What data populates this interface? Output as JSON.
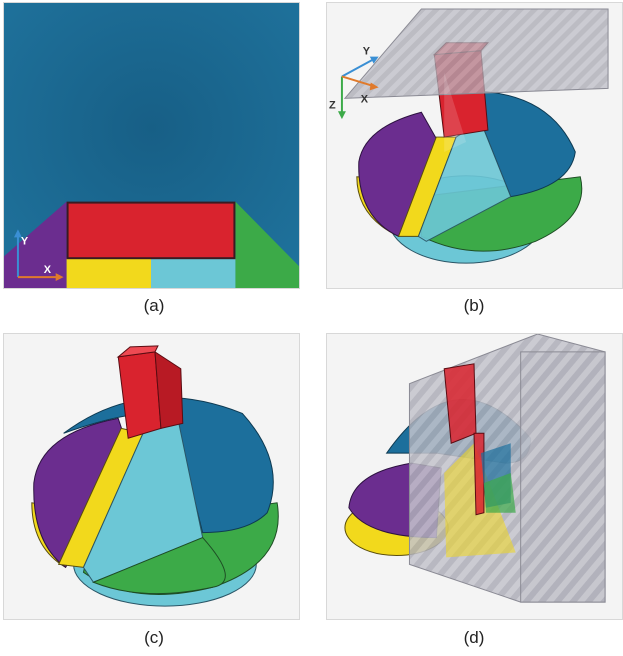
{
  "captions": {
    "a": "(a)",
    "b": "(b)",
    "c": "(c)",
    "d": "(d)"
  },
  "axes": {
    "x": "X",
    "y": "Y",
    "z": "Z"
  },
  "colors": {
    "blue": "#1c6f9c",
    "red": "#d9232e",
    "yellow": "#f2d91c",
    "purple": "#6b2d8f",
    "green": "#3caa48",
    "cyan": "#6cc7d6",
    "plane": "#b8b8c2",
    "axis_x": "#e07a2b",
    "axis_y": "#3a8fd4",
    "axis_z": "#3caa48"
  }
}
